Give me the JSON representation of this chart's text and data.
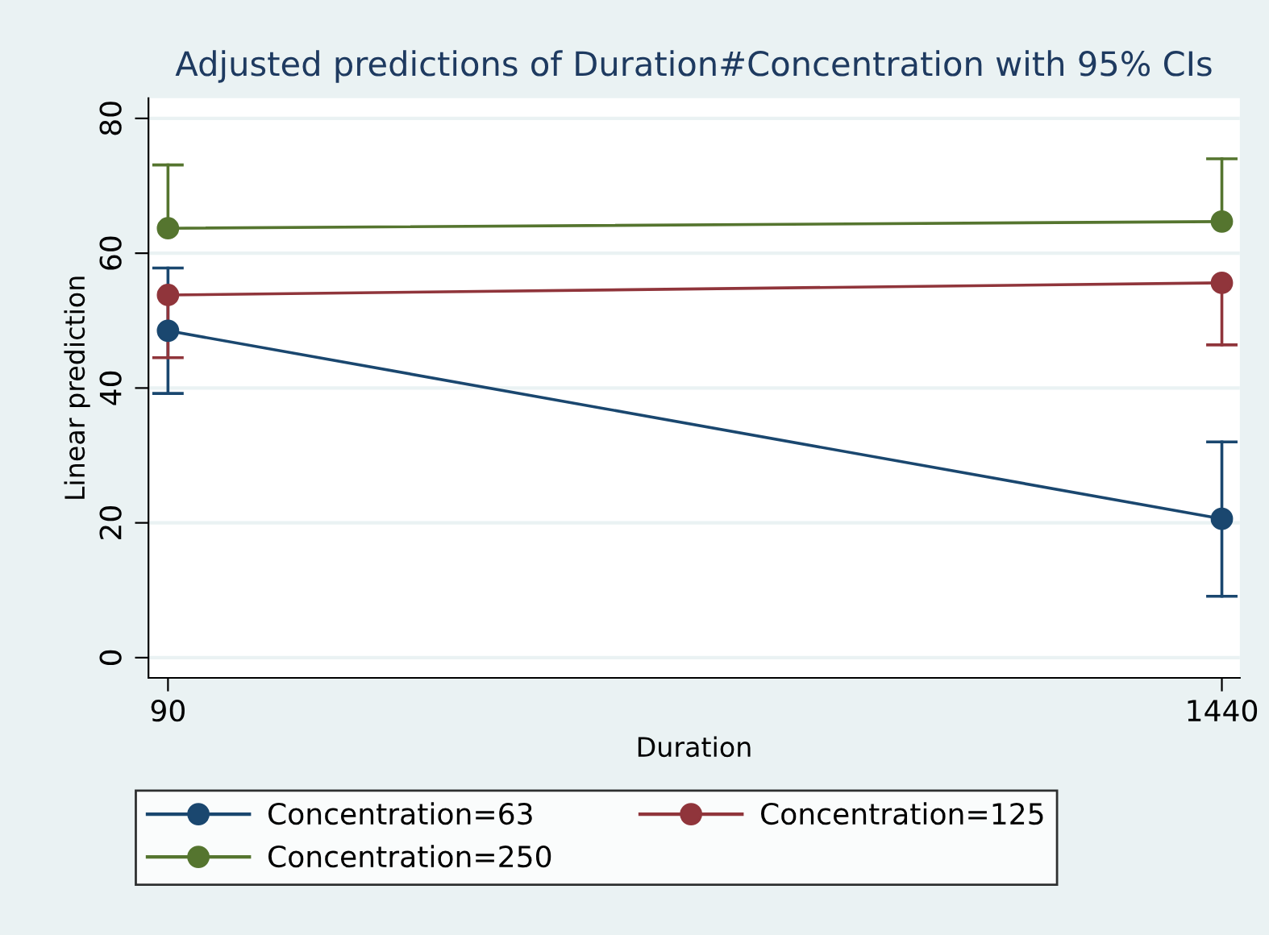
{
  "chart_data": {
    "type": "line",
    "title": "Adjusted predictions of Duration#Concentration with 95% CIs",
    "xlabel": "Duration",
    "ylabel": "Linear prediction",
    "x": [
      90,
      1440
    ],
    "xlim": [
      65,
      1463
    ],
    "xticks": [
      90,
      1440
    ],
    "ylim": [
      -3,
      83
    ],
    "yticks": [
      0,
      20,
      40,
      60,
      80
    ],
    "grid": "y",
    "legend": "bottom",
    "marker": "circle",
    "line_style": "solid",
    "series": [
      {
        "name": "Concentration=63",
        "color": "#1a476f",
        "values": [
          48.5,
          20.6
        ],
        "errors": [
          [
            39.2,
            57.8
          ],
          [
            9.1,
            32.0
          ]
        ]
      },
      {
        "name": "Concentration=125",
        "color": "#90353b",
        "values": [
          53.8,
          55.6
        ],
        "errors": [
          [
            44.5,
            53.8
          ],
          [
            46.4,
            55.6
          ]
        ]
      },
      {
        "name": "Concentration=250",
        "color": "#55752f",
        "values": [
          63.7,
          64.7
        ],
        "errors": [
          [
            63.7,
            73.1
          ],
          [
            64.7,
            74.0
          ]
        ]
      }
    ]
  }
}
